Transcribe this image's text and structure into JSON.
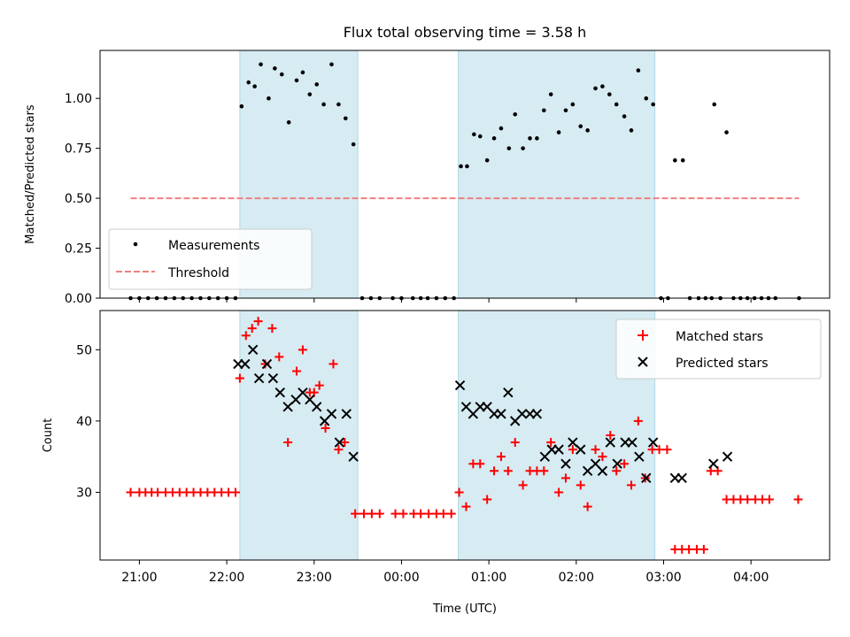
{
  "chart_data": [
    {
      "type": "scatter",
      "panel": "top",
      "title": "Flux total observing time = 3.58 h",
      "ylabel": "Matched/Predicted stars",
      "xlabel": "",
      "ylim": [
        0,
        1.24
      ],
      "y_ticks": [
        0,
        0.25,
        0.5,
        0.75,
        1.0
      ],
      "y_tick_labels": [
        "0.00",
        "0.25",
        "0.50",
        "0.75",
        "1.00"
      ],
      "x_tick_hours": [
        21,
        22,
        23,
        24,
        25,
        26,
        27,
        28
      ],
      "xlim_hours": [
        20.55,
        28.9
      ],
      "shaded_intervals_hours": [
        [
          22.15,
          23.5
        ],
        [
          24.65,
          26.9
        ]
      ],
      "grid": false,
      "legend_position": "lower-left",
      "series": [
        {
          "name": "Measurements",
          "marker": "dot",
          "color": "#000000",
          "points": [
            [
              20.9,
              0
            ],
            [
              21.0,
              0
            ],
            [
              21.1,
              0
            ],
            [
              21.2,
              0
            ],
            [
              21.3,
              0
            ],
            [
              21.4,
              0
            ],
            [
              21.5,
              0
            ],
            [
              21.6,
              0
            ],
            [
              21.7,
              0
            ],
            [
              21.8,
              0
            ],
            [
              21.9,
              0
            ],
            [
              22.0,
              0
            ],
            [
              22.1,
              0
            ],
            [
              22.17,
              0.96
            ],
            [
              22.25,
              1.08
            ],
            [
              22.32,
              1.06
            ],
            [
              22.39,
              1.17
            ],
            [
              22.48,
              1.0
            ],
            [
              22.55,
              1.15
            ],
            [
              22.63,
              1.12
            ],
            [
              22.71,
              0.88
            ],
            [
              22.8,
              1.09
            ],
            [
              22.87,
              1.13
            ],
            [
              22.95,
              1.02
            ],
            [
              23.03,
              1.07
            ],
            [
              23.11,
              0.97
            ],
            [
              23.2,
              1.17
            ],
            [
              23.28,
              0.97
            ],
            [
              23.36,
              0.9
            ],
            [
              23.45,
              0.77
            ],
            [
              23.55,
              0
            ],
            [
              23.65,
              0
            ],
            [
              23.75,
              0
            ],
            [
              23.9,
              0
            ],
            [
              24.0,
              0
            ],
            [
              24.13,
              0
            ],
            [
              24.22,
              0
            ],
            [
              24.3,
              0
            ],
            [
              24.4,
              0
            ],
            [
              24.5,
              0
            ],
            [
              24.6,
              0
            ],
            [
              24.68,
              0.66
            ],
            [
              24.75,
              0.66
            ],
            [
              24.83,
              0.82
            ],
            [
              24.9,
              0.81
            ],
            [
              24.98,
              0.69
            ],
            [
              25.06,
              0.8
            ],
            [
              25.14,
              0.85
            ],
            [
              25.23,
              0.75
            ],
            [
              25.3,
              0.92
            ],
            [
              25.39,
              0.75
            ],
            [
              25.47,
              0.8
            ],
            [
              25.55,
              0.8
            ],
            [
              25.63,
              0.94
            ],
            [
              25.71,
              1.02
            ],
            [
              25.8,
              0.83
            ],
            [
              25.88,
              0.94
            ],
            [
              25.96,
              0.97
            ],
            [
              26.05,
              0.86
            ],
            [
              26.13,
              0.84
            ],
            [
              26.22,
              1.05
            ],
            [
              26.3,
              1.06
            ],
            [
              26.38,
              1.02
            ],
            [
              26.46,
              0.97
            ],
            [
              26.55,
              0.91
            ],
            [
              26.63,
              0.84
            ],
            [
              26.71,
              1.14
            ],
            [
              26.8,
              1.0
            ],
            [
              26.88,
              0.97
            ],
            [
              26.97,
              0
            ],
            [
              27.05,
              0
            ],
            [
              27.13,
              0.69
            ],
            [
              27.22,
              0.69
            ],
            [
              27.3,
              0
            ],
            [
              27.4,
              0
            ],
            [
              27.48,
              0
            ],
            [
              27.55,
              0
            ],
            [
              27.58,
              0.97
            ],
            [
              27.65,
              0
            ],
            [
              27.72,
              0.83
            ],
            [
              27.8,
              0
            ],
            [
              27.88,
              0
            ],
            [
              27.96,
              0
            ],
            [
              28.04,
              0
            ],
            [
              28.12,
              0
            ],
            [
              28.2,
              0
            ],
            [
              28.28,
              0
            ],
            [
              28.55,
              0
            ]
          ]
        },
        {
          "name": "Threshold",
          "style": "dashed",
          "color": "#f08080",
          "points": [
            [
              20.9,
              0.5
            ],
            [
              28.55,
              0.5
            ]
          ]
        }
      ]
    },
    {
      "type": "scatter",
      "panel": "bottom",
      "title": "",
      "xlabel": "Time (UTC)",
      "ylabel": "Count",
      "ylim": [
        20.5,
        55.5
      ],
      "y_ticks": [
        30,
        40,
        50
      ],
      "y_tick_labels": [
        "30",
        "40",
        "50"
      ],
      "x_tick_hours": [
        21,
        22,
        23,
        24,
        25,
        26,
        27,
        28
      ],
      "x_tick_labels": [
        "21:00",
        "22:00",
        "23:00",
        "00:00",
        "01:00",
        "02:00",
        "03:00",
        "04:00"
      ],
      "xlim_hours": [
        20.55,
        28.9
      ],
      "shaded_intervals_hours": [
        [
          22.15,
          23.5
        ],
        [
          24.65,
          26.9
        ]
      ],
      "grid": false,
      "legend_position": "upper-right",
      "series": [
        {
          "name": "Matched stars",
          "marker": "plus",
          "color": "#ff0000",
          "points": [
            [
              20.9,
              30
            ],
            [
              21.0,
              30
            ],
            [
              21.07,
              30
            ],
            [
              21.14,
              30
            ],
            [
              21.21,
              30
            ],
            [
              21.3,
              30
            ],
            [
              21.38,
              30
            ],
            [
              21.46,
              30
            ],
            [
              21.54,
              30
            ],
            [
              21.62,
              30
            ],
            [
              21.7,
              30
            ],
            [
              21.78,
              30
            ],
            [
              21.86,
              30
            ],
            [
              21.94,
              30
            ],
            [
              22.02,
              30
            ],
            [
              22.1,
              30
            ],
            [
              22.15,
              46
            ],
            [
              22.22,
              52
            ],
            [
              22.29,
              53
            ],
            [
              22.36,
              54
            ],
            [
              22.44,
              48
            ],
            [
              22.52,
              53
            ],
            [
              22.6,
              49
            ],
            [
              22.7,
              37
            ],
            [
              22.8,
              47
            ],
            [
              22.87,
              50
            ],
            [
              22.95,
              44
            ],
            [
              23.0,
              44
            ],
            [
              23.06,
              45
            ],
            [
              23.13,
              39
            ],
            [
              23.22,
              48
            ],
            [
              23.28,
              36
            ],
            [
              23.35,
              37
            ],
            [
              23.47,
              27
            ],
            [
              23.57,
              27
            ],
            [
              23.66,
              27
            ],
            [
              23.75,
              27
            ],
            [
              23.93,
              27
            ],
            [
              24.02,
              27
            ],
            [
              24.14,
              27
            ],
            [
              24.22,
              27
            ],
            [
              24.31,
              27
            ],
            [
              24.4,
              27
            ],
            [
              24.48,
              27
            ],
            [
              24.57,
              27
            ],
            [
              24.66,
              30
            ],
            [
              24.74,
              28
            ],
            [
              24.82,
              34
            ],
            [
              24.9,
              34
            ],
            [
              24.98,
              29
            ],
            [
              25.06,
              33
            ],
            [
              25.14,
              35
            ],
            [
              25.22,
              33
            ],
            [
              25.3,
              37
            ],
            [
              25.39,
              31
            ],
            [
              25.47,
              33
            ],
            [
              25.55,
              33
            ],
            [
              25.63,
              33
            ],
            [
              25.71,
              37
            ],
            [
              25.8,
              30
            ],
            [
              25.88,
              32
            ],
            [
              25.96,
              36
            ],
            [
              26.05,
              31
            ],
            [
              26.13,
              28
            ],
            [
              26.22,
              36
            ],
            [
              26.3,
              35
            ],
            [
              26.39,
              38
            ],
            [
              26.46,
              33
            ],
            [
              26.55,
              34
            ],
            [
              26.63,
              31
            ],
            [
              26.71,
              40
            ],
            [
              26.79,
              32
            ],
            [
              26.87,
              36
            ],
            [
              26.95,
              36
            ],
            [
              27.04,
              36
            ],
            [
              27.13,
              22
            ],
            [
              27.21,
              22
            ],
            [
              27.29,
              22
            ],
            [
              27.38,
              22
            ],
            [
              27.46,
              22
            ],
            [
              27.54,
              33
            ],
            [
              27.62,
              33
            ],
            [
              27.72,
              29
            ],
            [
              27.8,
              29
            ],
            [
              27.88,
              29
            ],
            [
              27.96,
              29
            ],
            [
              28.05,
              29
            ],
            [
              28.13,
              29
            ],
            [
              28.21,
              29
            ],
            [
              28.54,
              29
            ]
          ]
        },
        {
          "name": "Predicted stars",
          "marker": "x",
          "color": "#000000",
          "points": [
            [
              22.13,
              48
            ],
            [
              22.21,
              48
            ],
            [
              22.3,
              50
            ],
            [
              22.37,
              46
            ],
            [
              22.46,
              48
            ],
            [
              22.53,
              46
            ],
            [
              22.61,
              44
            ],
            [
              22.7,
              42
            ],
            [
              22.79,
              43
            ],
            [
              22.87,
              44
            ],
            [
              22.95,
              43
            ],
            [
              23.03,
              42
            ],
            [
              23.12,
              40
            ],
            [
              23.2,
              41
            ],
            [
              23.29,
              37
            ],
            [
              23.37,
              41
            ],
            [
              23.45,
              35
            ],
            [
              24.67,
              45
            ],
            [
              24.74,
              42
            ],
            [
              24.82,
              41
            ],
            [
              24.9,
              42
            ],
            [
              24.98,
              42
            ],
            [
              25.06,
              41
            ],
            [
              25.14,
              41
            ],
            [
              25.22,
              44
            ],
            [
              25.3,
              40
            ],
            [
              25.38,
              41
            ],
            [
              25.47,
              41
            ],
            [
              25.55,
              41
            ],
            [
              25.64,
              35
            ],
            [
              25.72,
              36
            ],
            [
              25.8,
              36
            ],
            [
              25.88,
              34
            ],
            [
              25.96,
              37
            ],
            [
              26.05,
              36
            ],
            [
              26.13,
              33
            ],
            [
              26.22,
              34
            ],
            [
              26.3,
              33
            ],
            [
              26.39,
              37
            ],
            [
              26.47,
              34
            ],
            [
              26.56,
              37
            ],
            [
              26.64,
              37
            ],
            [
              26.72,
              35
            ],
            [
              26.8,
              32
            ],
            [
              26.88,
              37
            ],
            [
              27.13,
              32
            ],
            [
              27.21,
              32
            ],
            [
              27.57,
              34
            ],
            [
              27.73,
              35
            ]
          ]
        }
      ]
    }
  ]
}
